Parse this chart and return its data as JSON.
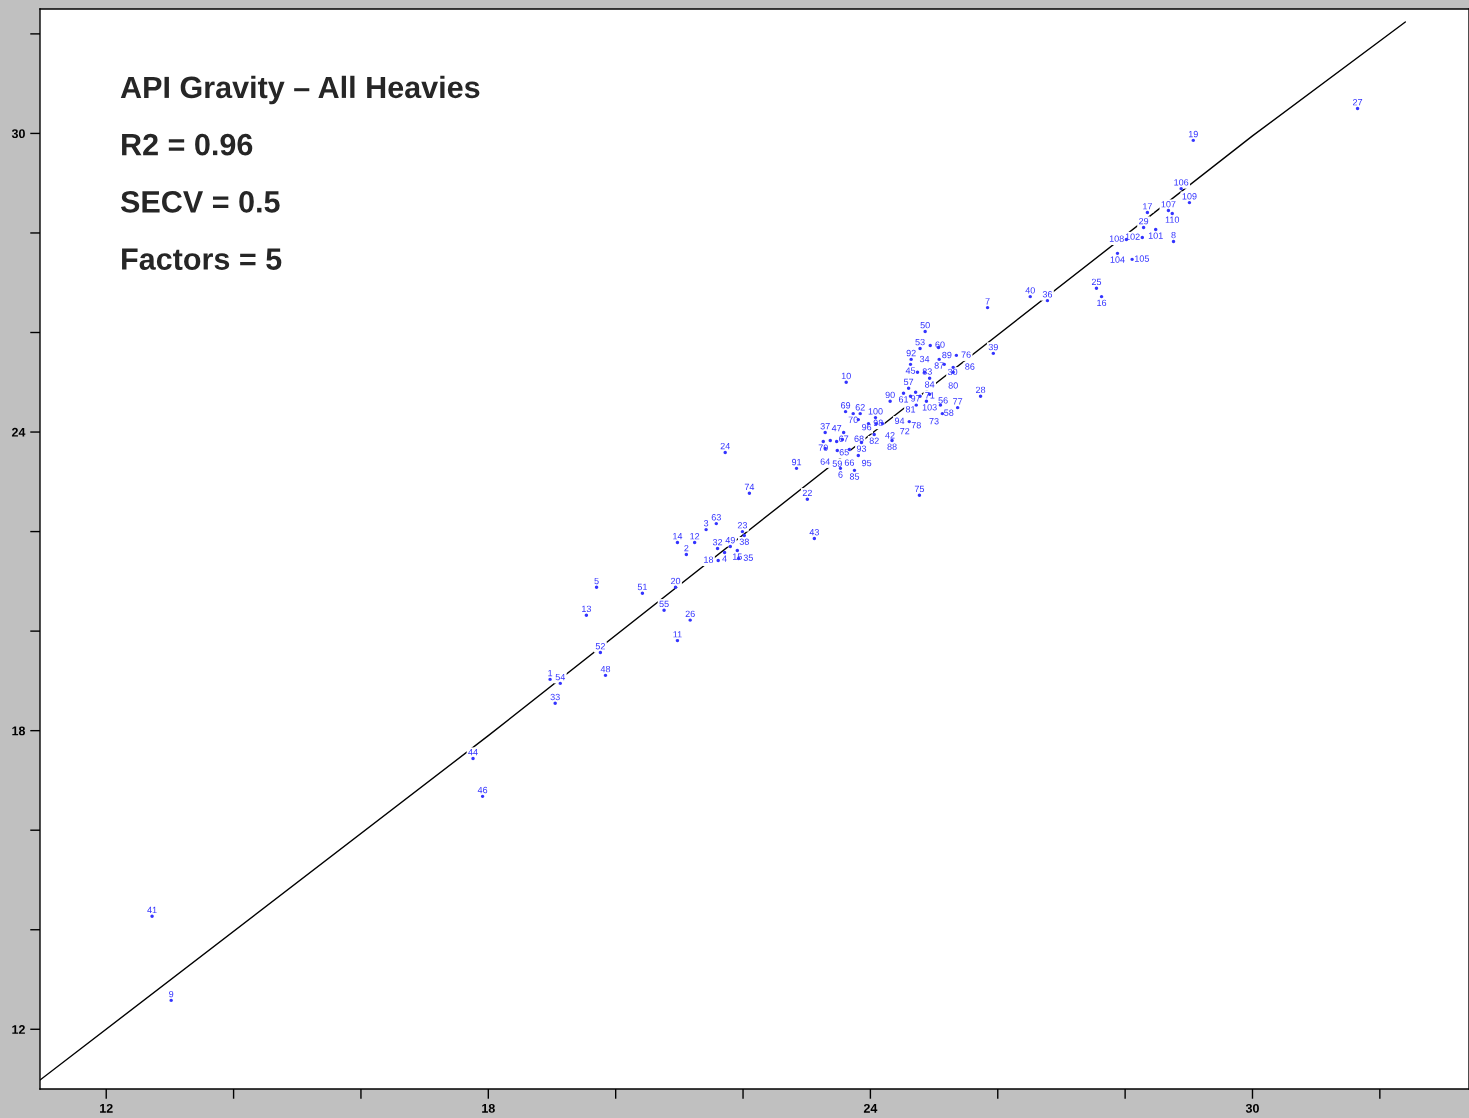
{
  "chart_data": {
    "type": "scatter",
    "title": "API Gravity – All Heavies",
    "annotations": [
      "R2 = 0.96",
      "SECV = 0.5",
      "Factors = 5",
      {
        "text": "27",
        "x": 31.65,
        "y": 30.5
      },
      {
        "text": "19",
        "x": 29.07,
        "y": 29.86
      },
      {
        "text": "106",
        "x": 28.88,
        "y": 28.89
      },
      {
        "text": "109",
        "x": 29.01,
        "y": 28.61
      },
      {
        "text": "17",
        "x": 28.35,
        "y": 28.41
      },
      {
        "text": "107",
        "x": 28.68,
        "y": 28.45
      },
      {
        "text": "110",
        "x": 28.74,
        "y": 28.39
      },
      {
        "text": "29",
        "x": 28.29,
        "y": 28.11
      },
      {
        "text": "101",
        "x": 28.48,
        "y": 28.07
      },
      {
        "text": "102",
        "x": 28.27,
        "y": 27.91
      },
      {
        "text": "108",
        "x": 28.02,
        "y": 27.87
      },
      {
        "text": "8",
        "x": 28.76,
        "y": 27.83
      },
      {
        "text": "104",
        "x": 27.88,
        "y": 27.59
      },
      {
        "text": "105",
        "x": 28.11,
        "y": 27.47
      },
      {
        "text": "25",
        "x": 27.55,
        "y": 26.89
      },
      {
        "text": "16",
        "x": 27.63,
        "y": 26.72
      },
      {
        "text": "40",
        "x": 26.51,
        "y": 26.72
      },
      {
        "text": "36",
        "x": 26.78,
        "y": 26.64
      },
      {
        "text": "7",
        "x": 25.84,
        "y": 26.5
      },
      {
        "text": "50",
        "x": 24.86,
        "y": 26.02
      },
      {
        "text": "53",
        "x": 24.78,
        "y": 25.68
      },
      {
        "text": "60",
        "x": 24.94,
        "y": 25.74
      },
      {
        "text": "89",
        "x": 25.07,
        "y": 25.7
      },
      {
        "text": "92",
        "x": 24.64,
        "y": 25.46
      },
      {
        "text": "45",
        "x": 24.63,
        "y": 25.36
      },
      {
        "text": "87",
        "x": 25.08,
        "y": 25.46
      },
      {
        "text": "76",
        "x": 25.35,
        "y": 25.54
      },
      {
        "text": "39",
        "x": 25.93,
        "y": 25.58
      },
      {
        "text": "30",
        "x": 25.16,
        "y": 25.36
      },
      {
        "text": "86",
        "x": 25.3,
        "y": 25.3
      },
      {
        "text": "80",
        "x": 25.3,
        "y": 25.2
      },
      {
        "text": "83",
        "x": 24.74,
        "y": 25.2
      },
      {
        "text": "34",
        "x": 24.85,
        "y": 25.2
      },
      {
        "text": "84",
        "x": 24.93,
        "y": 25.08
      },
      {
        "text": "10",
        "x": 23.62,
        "y": 25.0
      },
      {
        "text": "57",
        "x": 24.6,
        "y": 24.88
      },
      {
        "text": "61",
        "x": 24.52,
        "y": 24.78
      },
      {
        "text": "97",
        "x": 24.71,
        "y": 24.8
      },
      {
        "text": "81",
        "x": 24.63,
        "y": 24.72
      },
      {
        "text": "71",
        "x": 24.78,
        "y": 24.72
      },
      {
        "text": "103",
        "x": 24.93,
        "y": 24.76
      },
      {
        "text": "78",
        "x": 24.72,
        "y": 24.54
      },
      {
        "text": "56",
        "x": 24.88,
        "y": 24.62
      },
      {
        "text": "90",
        "x": 24.31,
        "y": 24.62
      },
      {
        "text": "28",
        "x": 25.73,
        "y": 24.72
      },
      {
        "text": "58",
        "x": 25.1,
        "y": 24.54
      },
      {
        "text": "77",
        "x": 25.37,
        "y": 24.49
      },
      {
        "text": "73",
        "x": 25.13,
        "y": 24.37
      },
      {
        "text": "94",
        "x": 24.61,
        "y": 24.21
      },
      {
        "text": "69",
        "x": 23.61,
        "y": 24.41
      },
      {
        "text": "70",
        "x": 23.73,
        "y": 24.37
      },
      {
        "text": "62",
        "x": 23.84,
        "y": 24.37
      },
      {
        "text": "100",
        "x": 24.08,
        "y": 24.29
      },
      {
        "text": "96",
        "x": 23.81,
        "y": 24.25
      },
      {
        "text": "98",
        "x": 23.97,
        "y": 24.17
      },
      {
        "text": "42",
        "x": 24.09,
        "y": 24.17
      },
      {
        "text": "72",
        "x": 24.19,
        "y": 24.17
      },
      {
        "text": "37",
        "x": 23.29,
        "y": 23.99
      },
      {
        "text": "67",
        "x": 23.58,
        "y": 23.99
      },
      {
        "text": "82",
        "x": 24.06,
        "y": 23.95
      },
      {
        "text": "88",
        "x": 24.34,
        "y": 23.83
      },
      {
        "text": "93",
        "x": 23.86,
        "y": 23.79
      },
      {
        "text": "79",
        "x": 23.26,
        "y": 23.81
      },
      {
        "text": "65",
        "x": 23.37,
        "y": 23.83
      },
      {
        "text": "47",
        "x": 23.47,
        "y": 23.81
      },
      {
        "text": "68",
        "x": 23.56,
        "y": 23.85
      },
      {
        "text": "64",
        "x": 23.29,
        "y": 23.67
      },
      {
        "text": "59",
        "x": 23.48,
        "y": 23.63
      },
      {
        "text": "66",
        "x": 23.67,
        "y": 23.65
      },
      {
        "text": "95",
        "x": 23.81,
        "y": 23.53
      },
      {
        "text": "6",
        "x": 23.53,
        "y": 23.27
      },
      {
        "text": "85",
        "x": 23.75,
        "y": 23.23
      },
      {
        "text": "24",
        "x": 21.72,
        "y": 23.59
      },
      {
        "text": "91",
        "x": 22.84,
        "y": 23.27
      },
      {
        "text": "74",
        "x": 22.1,
        "y": 22.77
      },
      {
        "text": "22",
        "x": 23.01,
        "y": 22.65
      },
      {
        "text": "75",
        "x": 24.77,
        "y": 22.73
      },
      {
        "text": "3",
        "x": 21.42,
        "y": 22.04
      },
      {
        "text": "63",
        "x": 21.58,
        "y": 22.16
      },
      {
        "text": "23",
        "x": 21.99,
        "y": 22.0
      },
      {
        "text": "38",
        "x": 22.02,
        "y": 21.92
      },
      {
        "text": "14",
        "x": 20.97,
        "y": 21.78
      },
      {
        "text": "12",
        "x": 21.24,
        "y": 21.78
      },
      {
        "text": "2",
        "x": 21.11,
        "y": 21.54
      },
      {
        "text": "32",
        "x": 21.6,
        "y": 21.66
      },
      {
        "text": "4",
        "x": 21.71,
        "y": 21.58
      },
      {
        "text": "49",
        "x": 21.8,
        "y": 21.7
      },
      {
        "text": "15",
        "x": 21.91,
        "y": 21.62
      },
      {
        "text": "18",
        "x": 21.61,
        "y": 21.42
      },
      {
        "text": "35",
        "x": 21.93,
        "y": 21.46
      },
      {
        "text": "43",
        "x": 23.12,
        "y": 21.86
      },
      {
        "text": "5",
        "x": 19.7,
        "y": 20.88
      },
      {
        "text": "51",
        "x": 20.42,
        "y": 20.76
      },
      {
        "text": "20",
        "x": 20.94,
        "y": 20.88
      },
      {
        "text": "55",
        "x": 20.76,
        "y": 20.42
      },
      {
        "text": "13",
        "x": 19.54,
        "y": 20.32
      },
      {
        "text": "26",
        "x": 21.17,
        "y": 20.22
      },
      {
        "text": "11",
        "x": 20.97,
        "y": 19.81
      },
      {
        "text": "52",
        "x": 19.76,
        "y": 19.57
      },
      {
        "text": "48",
        "x": 19.84,
        "y": 19.11
      },
      {
        "text": "1",
        "x": 18.97,
        "y": 19.03
      },
      {
        "text": "54",
        "x": 19.13,
        "y": 18.95
      },
      {
        "text": "33",
        "x": 19.05,
        "y": 18.55
      },
      {
        "text": "44",
        "x": 17.76,
        "y": 17.44
      },
      {
        "text": "46",
        "x": 17.91,
        "y": 16.68
      },
      {
        "text": "41",
        "x": 12.72,
        "y": 14.27
      },
      {
        "text": "9",
        "x": 13.02,
        "y": 12.58
      }
    ],
    "xlim": [
      10.96,
      33.4
    ],
    "ylim": [
      10.8,
      32.5
    ],
    "xticks": [
      12,
      {
        "value": 14,
        "label": null
      },
      {
        "value": 16,
        "label": null
      },
      18,
      {
        "value": 20,
        "label": null
      },
      {
        "value": 22,
        "label": null
      },
      24,
      {
        "value": 26,
        "label": null
      },
      {
        "value": 28,
        "label": null
      },
      30,
      {
        "value": 32,
        "label": null
      }
    ],
    "yticks": [
      12,
      {
        "value": 14,
        "label": null
      },
      {
        "value": 16,
        "label": null
      },
      18,
      {
        "value": 20,
        "label": null
      },
      {
        "value": 22,
        "label": null
      },
      24,
      {
        "value": 26,
        "label": null
      },
      {
        "value": 28,
        "label": null
      },
      30,
      {
        "value": 32,
        "label": null
      }
    ],
    "grid": false,
    "legend": false,
    "marker": "circle",
    "series": [
      {
        "color": "#3333ff",
        "x": [
          31.65,
          29.07,
          28.88,
          29.01,
          28.35,
          28.68,
          28.74,
          28.29,
          28.48,
          28.27,
          28.02,
          28.76,
          27.88,
          28.11,
          27.55,
          27.63,
          26.51,
          26.78,
          25.84,
          24.86,
          24.78,
          24.94,
          25.07,
          24.64,
          24.63,
          25.08,
          25.35,
          25.93,
          25.16,
          25.3,
          25.3,
          24.74,
          24.85,
          24.93,
          23.62,
          24.6,
          24.52,
          24.71,
          24.63,
          24.78,
          24.93,
          24.72,
          24.88,
          24.31,
          25.73,
          25.1,
          25.37,
          25.13,
          24.61,
          23.61,
          23.73,
          23.84,
          24.08,
          23.81,
          23.97,
          24.09,
          24.19,
          23.29,
          23.58,
          24.06,
          24.34,
          23.86,
          23.26,
          23.37,
          23.47,
          23.56,
          23.29,
          23.48,
          23.67,
          23.81,
          23.53,
          23.75,
          21.72,
          22.84,
          22.1,
          23.01,
          24.77,
          21.42,
          21.58,
          21.99,
          22.02,
          20.97,
          21.24,
          21.11,
          21.6,
          21.71,
          21.8,
          21.91,
          21.61,
          21.93,
          23.12,
          19.7,
          20.42,
          20.94,
          20.76,
          19.54,
          21.17,
          20.97,
          19.76,
          19.84,
          18.97,
          19.13,
          19.05,
          17.76,
          17.91,
          12.72,
          13.02
        ],
        "values": [
          30.5,
          29.86,
          28.89,
          28.61,
          28.41,
          28.45,
          28.39,
          28.11,
          28.07,
          27.91,
          27.87,
          27.83,
          27.59,
          27.47,
          26.89,
          26.72,
          26.72,
          26.64,
          26.5,
          26.02,
          25.68,
          25.74,
          25.7,
          25.46,
          25.36,
          25.46,
          25.54,
          25.58,
          25.36,
          25.3,
          25.2,
          25.2,
          25.2,
          25.08,
          25.0,
          24.88,
          24.78,
          24.8,
          24.72,
          24.72,
          24.76,
          24.54,
          24.62,
          24.62,
          24.72,
          24.54,
          24.49,
          24.37,
          24.21,
          24.41,
          24.37,
          24.37,
          24.29,
          24.25,
          24.17,
          24.17,
          24.17,
          23.99,
          23.99,
          23.95,
          23.83,
          23.79,
          23.81,
          23.83,
          23.81,
          23.85,
          23.67,
          23.63,
          23.65,
          23.53,
          23.27,
          23.23,
          23.59,
          23.27,
          22.77,
          22.65,
          22.73,
          22.04,
          22.16,
          22.0,
          21.92,
          21.78,
          21.78,
          21.54,
          21.66,
          21.58,
          21.7,
          21.62,
          21.42,
          21.46,
          21.86,
          20.88,
          20.76,
          20.88,
          20.42,
          20.32,
          20.22,
          19.81,
          19.57,
          19.11,
          19.03,
          18.95,
          18.55,
          17.44,
          16.68,
          14.27,
          12.58
        ]
      },
      {
        "type": "line",
        "color": "#000000",
        "marker": "none",
        "line_style": "solid",
        "x": [
          10.96,
          18,
          24,
          30,
          32.4
        ],
        "values": [
          10.98,
          17.9,
          23.95,
          29.95,
          32.24
        ]
      }
    ]
  }
}
